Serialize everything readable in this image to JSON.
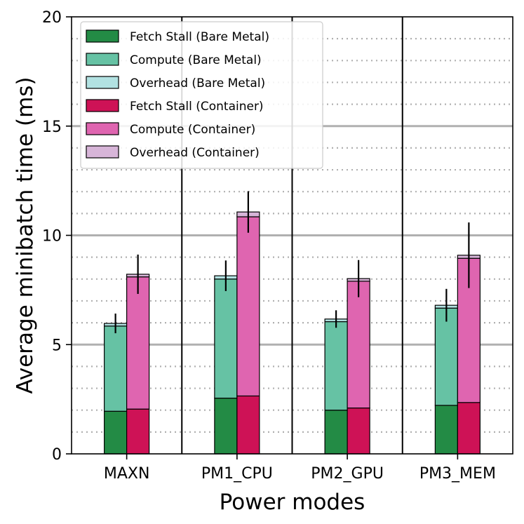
{
  "chart_data": {
    "type": "bar",
    "stacked": true,
    "title": "",
    "xlabel": "Power modes",
    "ylabel": "Average minibatch time (ms)",
    "ylim": [
      0,
      20
    ],
    "yticks": [
      0,
      5,
      10,
      15,
      20
    ],
    "ytick_labels": [
      "0",
      "5",
      "10",
      "15",
      "20"
    ],
    "major_grid": [
      5,
      10,
      15
    ],
    "minor_grid": [
      1,
      2,
      3,
      4,
      6,
      7,
      8,
      9,
      11,
      12,
      13,
      14,
      16,
      17,
      18,
      19
    ],
    "categories": [
      "MAXN",
      "PM1_CPU",
      "PM2_GPU",
      "PM3_MEM"
    ],
    "groups": [
      {
        "name": "Bare Metal",
        "fetch_stall": [
          1.95,
          2.55,
          2.0,
          2.22
        ],
        "compute": [
          3.9,
          5.45,
          4.05,
          4.45
        ],
        "overhead": [
          0.12,
          0.15,
          0.12,
          0.13
        ],
        "error": [
          0.45,
          0.7,
          0.4,
          0.75
        ]
      },
      {
        "name": "Container",
        "fetch_stall": [
          2.05,
          2.65,
          2.1,
          2.35
        ],
        "compute": [
          6.05,
          8.2,
          5.8,
          6.6
        ],
        "overhead": [
          0.12,
          0.22,
          0.12,
          0.14
        ],
        "error": [
          0.9,
          0.95,
          0.85,
          1.5
        ]
      }
    ],
    "legend": {
      "position": "upper-left",
      "entries": [
        {
          "label": "Fetch Stall (Bare Metal)",
          "color": "#238b45"
        },
        {
          "label": "Compute (Bare Metal)",
          "color": "#66c2a4"
        },
        {
          "label": "Overhead (Bare Metal)",
          "color": "#b2e2e2"
        },
        {
          "label": "Fetch Stall (Container)",
          "color": "#ce1256"
        },
        {
          "label": "Compute (Container)",
          "color": "#df65b0"
        },
        {
          "label": "Overhead (Container)",
          "color": "#d7b5d8"
        }
      ]
    },
    "colors": {
      "bare_fetch": "#238b45",
      "bare_compute": "#66c2a4",
      "bare_overhead": "#b2e2e2",
      "cont_fetch": "#ce1256",
      "cont_compute": "#df65b0",
      "cont_overhead": "#d7b5d8",
      "grid_major": "#b0b0b0",
      "grid_minor": "#b0b0b0"
    }
  }
}
